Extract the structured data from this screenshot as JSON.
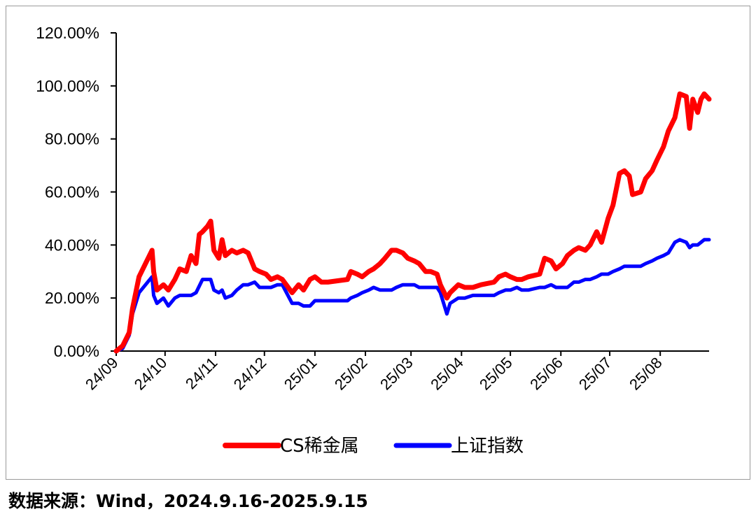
{
  "chart_data": {
    "type": "line",
    "title": "",
    "xlabel": "",
    "ylabel": "",
    "ylim": [
      0,
      120
    ],
    "y_ticks": [
      "0.00%",
      "20.00%",
      "40.00%",
      "60.00%",
      "80.00%",
      "100.00%",
      "120.00%"
    ],
    "x_ticks": [
      "24/09",
      "24/10",
      "24/11",
      "24/12",
      "25/01",
      "25/02",
      "25/03",
      "25/04",
      "25/05",
      "25/06",
      "25/07",
      "25/08"
    ],
    "legend_position": "bottom",
    "grid": false,
    "series": [
      {
        "name": "CS稀金属",
        "color": "#ff0000",
        "points": [
          [
            "2024-09-16",
            0
          ],
          [
            "2024-09-20",
            2
          ],
          [
            "2024-09-24",
            7
          ],
          [
            "2024-09-26",
            16
          ],
          [
            "2024-09-30",
            28
          ],
          [
            "2024-10-08",
            38
          ],
          [
            "2024-10-09",
            30
          ],
          [
            "2024-10-11",
            23
          ],
          [
            "2024-10-15",
            25
          ],
          [
            "2024-10-18",
            23
          ],
          [
            "2024-10-22",
            27
          ],
          [
            "2024-10-25",
            31
          ],
          [
            "2024-10-29",
            30
          ],
          [
            "2024-11-01",
            36
          ],
          [
            "2024-11-04",
            33
          ],
          [
            "2024-11-06",
            44
          ],
          [
            "2024-11-08",
            45
          ],
          [
            "2024-11-11",
            47
          ],
          [
            "2024-11-13",
            49
          ],
          [
            "2024-11-15",
            38
          ],
          [
            "2024-11-18",
            35
          ],
          [
            "2024-11-20",
            42
          ],
          [
            "2024-11-22",
            36
          ],
          [
            "2024-11-26",
            38
          ],
          [
            "2024-11-29",
            37
          ],
          [
            "2024-12-03",
            38
          ],
          [
            "2024-12-06",
            37
          ],
          [
            "2024-12-10",
            31
          ],
          [
            "2024-12-13",
            30
          ],
          [
            "2024-12-17",
            29
          ],
          [
            "2024-12-20",
            27
          ],
          [
            "2024-12-24",
            28
          ],
          [
            "2024-12-27",
            27
          ],
          [
            "2025-01-02",
            22
          ],
          [
            "2025-01-06",
            25
          ],
          [
            "2025-01-09",
            23
          ],
          [
            "2025-01-13",
            27
          ],
          [
            "2025-01-16",
            28
          ],
          [
            "2025-01-20",
            26
          ],
          [
            "2025-01-24",
            26
          ],
          [
            "2025-02-05",
            27
          ],
          [
            "2025-02-07",
            30
          ],
          [
            "2025-02-11",
            29
          ],
          [
            "2025-02-14",
            28
          ],
          [
            "2025-02-18",
            30
          ],
          [
            "2025-02-21",
            31
          ],
          [
            "2025-02-25",
            33
          ],
          [
            "2025-02-28",
            35
          ],
          [
            "2025-03-04",
            38
          ],
          [
            "2025-03-07",
            38
          ],
          [
            "2025-03-11",
            37
          ],
          [
            "2025-03-14",
            35
          ],
          [
            "2025-03-18",
            34
          ],
          [
            "2025-03-21",
            33
          ],
          [
            "2025-03-25",
            30
          ],
          [
            "2025-03-28",
            30
          ],
          [
            "2025-04-01",
            29
          ],
          [
            "2025-04-03",
            25
          ],
          [
            "2025-04-07",
            20
          ],
          [
            "2025-04-09",
            22
          ],
          [
            "2025-04-14",
            25
          ],
          [
            "2025-04-18",
            24
          ],
          [
            "2025-04-23",
            24
          ],
          [
            "2025-04-28",
            25
          ],
          [
            "2025-05-06",
            26
          ],
          [
            "2025-05-09",
            28
          ],
          [
            "2025-05-13",
            29
          ],
          [
            "2025-05-16",
            28
          ],
          [
            "2025-05-20",
            27
          ],
          [
            "2025-05-23",
            27
          ],
          [
            "2025-05-27",
            28
          ],
          [
            "2025-06-03",
            29
          ],
          [
            "2025-06-06",
            35
          ],
          [
            "2025-06-10",
            34
          ],
          [
            "2025-06-13",
            31
          ],
          [
            "2025-06-17",
            33
          ],
          [
            "2025-06-20",
            36
          ],
          [
            "2025-06-24",
            38
          ],
          [
            "2025-06-27",
            39
          ],
          [
            "2025-07-01",
            38
          ],
          [
            "2025-07-04",
            40
          ],
          [
            "2025-07-08",
            45
          ],
          [
            "2025-07-11",
            41
          ],
          [
            "2025-07-15",
            50
          ],
          [
            "2025-07-18",
            55
          ],
          [
            "2025-07-22",
            67
          ],
          [
            "2025-07-25",
            68
          ],
          [
            "2025-07-28",
            66
          ],
          [
            "2025-07-30",
            59
          ],
          [
            "2025-08-04",
            60
          ],
          [
            "2025-08-07",
            65
          ],
          [
            "2025-08-11",
            68
          ],
          [
            "2025-08-14",
            72
          ],
          [
            "2025-08-18",
            77
          ],
          [
            "2025-08-21",
            83
          ],
          [
            "2025-08-25",
            88
          ],
          [
            "2025-08-28",
            97
          ],
          [
            "2025-09-01",
            96
          ],
          [
            "2025-09-03",
            84
          ],
          [
            "2025-09-05",
            95
          ],
          [
            "2025-09-08",
            90
          ],
          [
            "2025-09-10",
            95
          ],
          [
            "2025-09-12",
            97
          ],
          [
            "2025-09-15",
            95
          ]
        ]
      },
      {
        "name": "上证指数",
        "color": "#0000ff",
        "points": [
          [
            "2024-09-16",
            0
          ],
          [
            "2024-09-20",
            1
          ],
          [
            "2024-09-24",
            6
          ],
          [
            "2024-09-26",
            14
          ],
          [
            "2024-09-30",
            22
          ],
          [
            "2024-10-08",
            28
          ],
          [
            "2024-10-09",
            21
          ],
          [
            "2024-10-11",
            18
          ],
          [
            "2024-10-15",
            20
          ],
          [
            "2024-10-18",
            17
          ],
          [
            "2024-10-22",
            20
          ],
          [
            "2024-10-25",
            21
          ],
          [
            "2024-10-29",
            21
          ],
          [
            "2024-11-01",
            21
          ],
          [
            "2024-11-04",
            22
          ],
          [
            "2024-11-08",
            27
          ],
          [
            "2024-11-11",
            27
          ],
          [
            "2024-11-13",
            27
          ],
          [
            "2024-11-15",
            23
          ],
          [
            "2024-11-18",
            22
          ],
          [
            "2024-11-20",
            23
          ],
          [
            "2024-11-22",
            20
          ],
          [
            "2024-11-26",
            21
          ],
          [
            "2024-11-29",
            23
          ],
          [
            "2024-12-03",
            25
          ],
          [
            "2024-12-06",
            25
          ],
          [
            "2024-12-10",
            26
          ],
          [
            "2024-12-13",
            24
          ],
          [
            "2024-12-17",
            24
          ],
          [
            "2024-12-20",
            24
          ],
          [
            "2024-12-24",
            25
          ],
          [
            "2024-12-27",
            25
          ],
          [
            "2025-01-02",
            18
          ],
          [
            "2025-01-06",
            18
          ],
          [
            "2025-01-09",
            17
          ],
          [
            "2025-01-13",
            17
          ],
          [
            "2025-01-16",
            19
          ],
          [
            "2025-01-20",
            19
          ],
          [
            "2025-01-24",
            19
          ],
          [
            "2025-02-05",
            19
          ],
          [
            "2025-02-07",
            20
          ],
          [
            "2025-02-11",
            21
          ],
          [
            "2025-02-14",
            22
          ],
          [
            "2025-02-18",
            23
          ],
          [
            "2025-02-21",
            24
          ],
          [
            "2025-02-25",
            23
          ],
          [
            "2025-02-28",
            23
          ],
          [
            "2025-03-04",
            23
          ],
          [
            "2025-03-07",
            24
          ],
          [
            "2025-03-11",
            25
          ],
          [
            "2025-03-14",
            25
          ],
          [
            "2025-03-18",
            25
          ],
          [
            "2025-03-21",
            24
          ],
          [
            "2025-03-25",
            24
          ],
          [
            "2025-03-28",
            24
          ],
          [
            "2025-04-01",
            24
          ],
          [
            "2025-04-03",
            22
          ],
          [
            "2025-04-07",
            14
          ],
          [
            "2025-04-09",
            18
          ],
          [
            "2025-04-14",
            20
          ],
          [
            "2025-04-18",
            20
          ],
          [
            "2025-04-23",
            21
          ],
          [
            "2025-04-28",
            21
          ],
          [
            "2025-05-06",
            21
          ],
          [
            "2025-05-09",
            22
          ],
          [
            "2025-05-13",
            23
          ],
          [
            "2025-05-16",
            23
          ],
          [
            "2025-05-20",
            24
          ],
          [
            "2025-05-23",
            23
          ],
          [
            "2025-05-27",
            23
          ],
          [
            "2025-06-03",
            24
          ],
          [
            "2025-06-06",
            24
          ],
          [
            "2025-06-10",
            25
          ],
          [
            "2025-06-13",
            24
          ],
          [
            "2025-06-17",
            24
          ],
          [
            "2025-06-20",
            24
          ],
          [
            "2025-06-24",
            26
          ],
          [
            "2025-06-27",
            26
          ],
          [
            "2025-07-01",
            27
          ],
          [
            "2025-07-04",
            27
          ],
          [
            "2025-07-08",
            28
          ],
          [
            "2025-07-11",
            29
          ],
          [
            "2025-07-15",
            29
          ],
          [
            "2025-07-18",
            30
          ],
          [
            "2025-07-22",
            31
          ],
          [
            "2025-07-25",
            32
          ],
          [
            "2025-07-28",
            32
          ],
          [
            "2025-07-30",
            32
          ],
          [
            "2025-08-04",
            32
          ],
          [
            "2025-08-07",
            33
          ],
          [
            "2025-08-11",
            34
          ],
          [
            "2025-08-14",
            35
          ],
          [
            "2025-08-18",
            36
          ],
          [
            "2025-08-21",
            37
          ],
          [
            "2025-08-25",
            41
          ],
          [
            "2025-08-28",
            42
          ],
          [
            "2025-09-01",
            41
          ],
          [
            "2025-09-03",
            39
          ],
          [
            "2025-09-05",
            40
          ],
          [
            "2025-09-08",
            40
          ],
          [
            "2025-09-10",
            41
          ],
          [
            "2025-09-12",
            42
          ],
          [
            "2025-09-15",
            42
          ]
        ]
      }
    ]
  },
  "source_note": "数据来源：Wind，2024.9.16-2025.9.15"
}
